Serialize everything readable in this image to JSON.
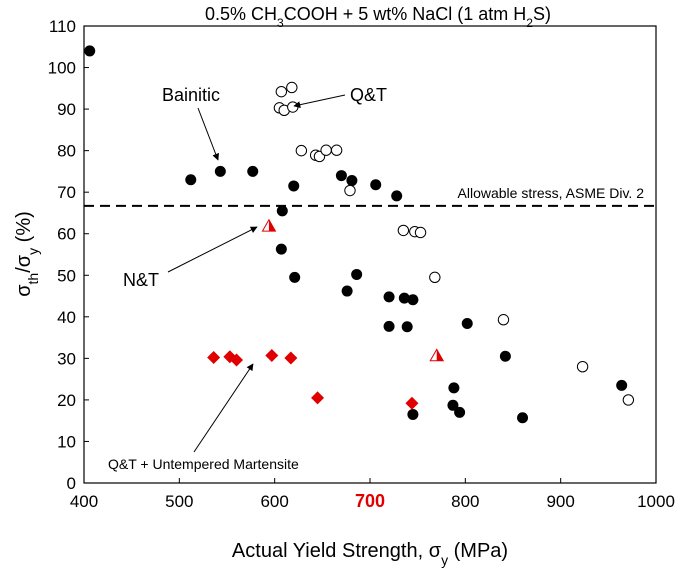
{
  "chart_data": {
    "type": "scatter",
    "title": "0.5% CH₃COOH +  5 wt% NaCl (1 atm H₂S)",
    "title_parts": [
      "0.5% CH",
      "3",
      "COOH +  5 wt% NaCl (1 atm H",
      "2",
      "S)"
    ],
    "xlabel": "Actual Yield Strength, σ",
    "xlabel_sub": "y",
    "xlabel_unit": " (MPa)",
    "ylabel": "σ",
    "ylabel_sub1": "th",
    "ylabel_mid": "/σ",
    "ylabel_sub2": "y",
    "ylabel_unit": " (%)",
    "xlim": [
      400,
      1000
    ],
    "ylim": [
      0,
      110
    ],
    "xticks": [
      400,
      500,
      600,
      700,
      800,
      900,
      1000
    ],
    "yticks": [
      0,
      10,
      20,
      30,
      40,
      50,
      60,
      70,
      80,
      90,
      100,
      110
    ],
    "highlighted_xtick": 700,
    "highlight_color": "#e00000",
    "allowable_stress": {
      "y": 66.7,
      "label": "Allowable stress, ASME Div. 2"
    },
    "series": [
      {
        "name": "Bainitic",
        "marker": "filled-circle",
        "color": "#000000",
        "points": [
          [
            406,
            104
          ],
          [
            512,
            73
          ],
          [
            543,
            75
          ],
          [
            577,
            75
          ],
          [
            608,
            65.5
          ],
          [
            607,
            56.3
          ],
          [
            620,
            71.5
          ],
          [
            621,
            49.5
          ],
          [
            670,
            74
          ],
          [
            681,
            72.8
          ],
          [
            686,
            50.2
          ],
          [
            676,
            46.2
          ],
          [
            706,
            71.8
          ],
          [
            728,
            69.1
          ],
          [
            720,
            44.8
          ],
          [
            736,
            44.5
          ],
          [
            745,
            44.1
          ],
          [
            720,
            37.7
          ],
          [
            739,
            37.6
          ],
          [
            802,
            38.4
          ],
          [
            842,
            30.5
          ],
          [
            788,
            22.9
          ],
          [
            787,
            18.7
          ],
          [
            794,
            17
          ],
          [
            745,
            16.5
          ],
          [
            860,
            15.7
          ],
          [
            964,
            23.5
          ]
        ]
      },
      {
        "name": "Q&T",
        "marker": "open-circle",
        "color": "#000000",
        "points": [
          [
            618,
            95.2
          ],
          [
            607,
            94.2
          ],
          [
            605,
            90.3
          ],
          [
            610,
            89.7
          ],
          [
            619,
            90.5
          ],
          [
            628,
            80
          ],
          [
            643,
            78.9
          ],
          [
            647,
            78.6
          ],
          [
            654,
            80.1
          ],
          [
            665,
            80.1
          ],
          [
            679,
            70.4
          ],
          [
            735,
            60.8
          ],
          [
            747,
            60.5
          ],
          [
            753,
            60.3
          ],
          [
            768,
            49.5
          ],
          [
            840,
            39.3
          ],
          [
            923,
            28
          ],
          [
            971,
            20
          ]
        ]
      },
      {
        "name": "N&T",
        "marker": "red-triangle",
        "color": "#e00000",
        "points": [
          [
            594,
            61.8
          ],
          [
            770,
            30.6
          ]
        ]
      },
      {
        "name": "Q&T + Untempered Martensite",
        "marker": "red-diamond",
        "color": "#e00000",
        "points": [
          [
            536,
            30.2
          ],
          [
            553,
            30.4
          ],
          [
            560,
            29.6
          ],
          [
            597,
            30.7
          ],
          [
            617,
            30.1
          ],
          [
            645,
            20.5
          ],
          [
            744,
            19.2
          ]
        ]
      }
    ],
    "annotations": [
      {
        "text": "Bainitic",
        "target": [
          540,
          75
        ]
      },
      {
        "text": "Q&T",
        "target": [
          620,
          90
        ]
      },
      {
        "text": "N&T",
        "target": [
          597,
          62
        ]
      },
      {
        "text": "Q&T + Untempered Martensite",
        "target": [
          552,
          28
        ]
      }
    ]
  }
}
